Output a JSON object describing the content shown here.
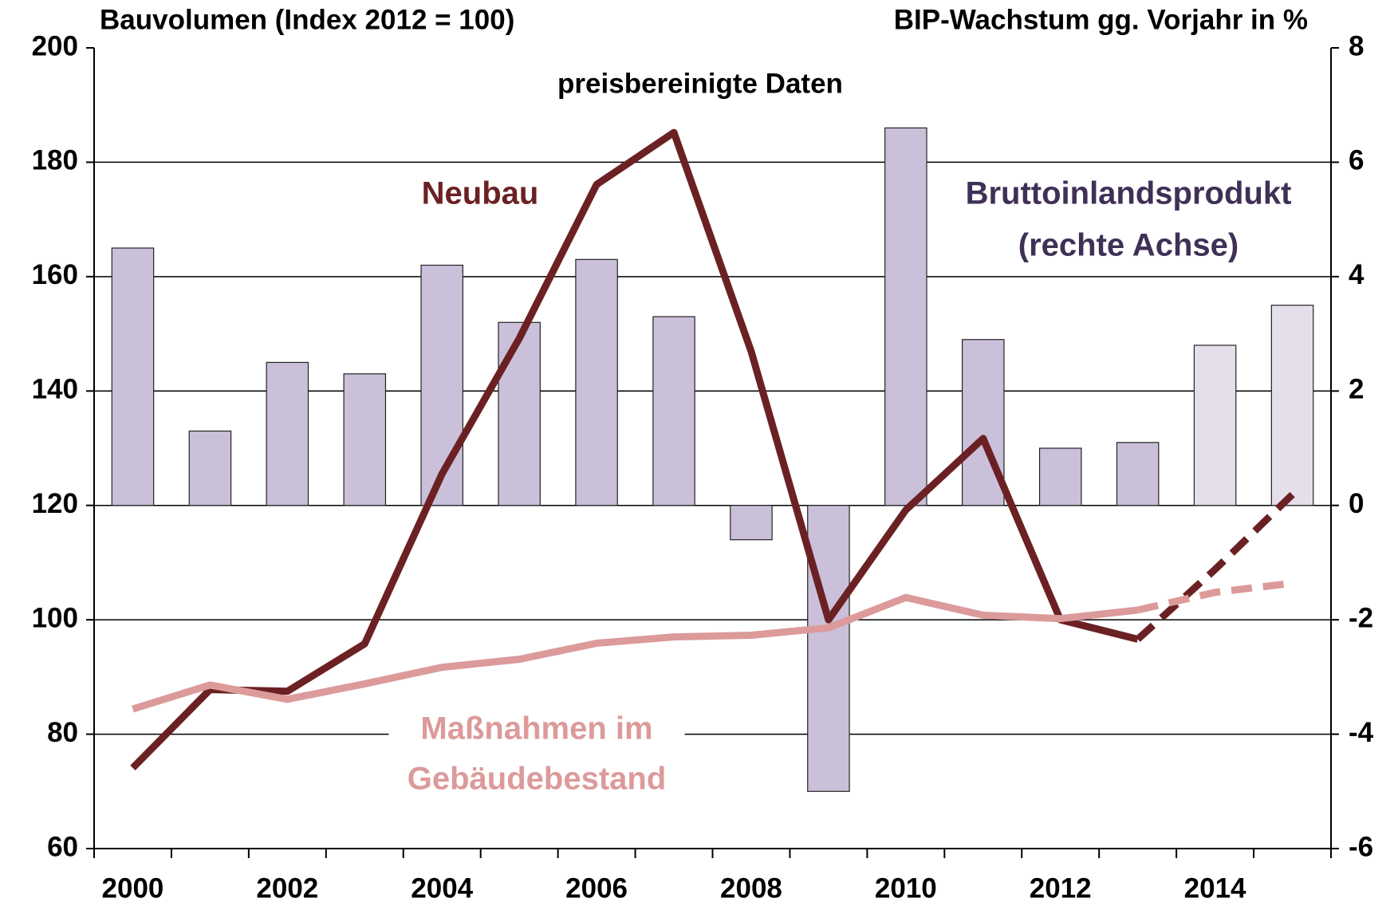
{
  "chart_data": {
    "type": "bar_line",
    "title": "Bauvolumen (Index 2012 = 100)",
    "y2_title": "BIP-Wachstum gg. Vorjahr in %",
    "subtitle": "preisbereinigte Daten",
    "categories": [
      "2000",
      null,
      "2002",
      null,
      "2004",
      null,
      "2006",
      null,
      "2008",
      null,
      "2010",
      null,
      "2012",
      null,
      "2014",
      null
    ],
    "ylim": [
      60,
      200
    ],
    "yticks": [
      60,
      80,
      100,
      120,
      140,
      160,
      180,
      200
    ],
    "y2lim": [
      -6,
      8
    ],
    "y2ticks": [
      -6,
      -4,
      -2,
      0,
      2,
      4,
      6,
      8
    ],
    "grid": true,
    "series": [
      {
        "name": [
          "Bruttoinlandsprodukt",
          "(rechte Achse)"
        ],
        "type": "bar",
        "axis": "y2",
        "color": "#cbc0da",
        "light_color": "#e4dfeb",
        "light_from": 14,
        "text_color": "#3f3056",
        "values": [
          4.5,
          1.3,
          2.5,
          2.3,
          4.2,
          3.2,
          4.3,
          3.3,
          -0.6,
          -5.0,
          6.6,
          2.9,
          1.0,
          1.1,
          2.8,
          3.5
        ]
      },
      {
        "name": [
          "Neubau"
        ],
        "type": "line",
        "color": "#6b2123",
        "dashed_from": 13,
        "values": [
          74.1,
          87.8,
          87.5,
          95.8,
          125.5,
          149.2,
          176.1,
          185.2,
          146.9,
          100.0,
          119.2,
          131.7,
          100.0,
          96.6,
          108.8,
          121.9
        ]
      },
      {
        "name": [
          "Maßnahmen im",
          "Gebäudebestand"
        ],
        "type": "line",
        "color": "#dc9a9a",
        "dashed_from": 13,
        "values": [
          84.4,
          88.6,
          86.1,
          88.8,
          91.7,
          93.1,
          95.9,
          97.0,
          97.3,
          98.6,
          103.9,
          100.8,
          100.2,
          101.7,
          104.8,
          106.4
        ]
      }
    ]
  }
}
